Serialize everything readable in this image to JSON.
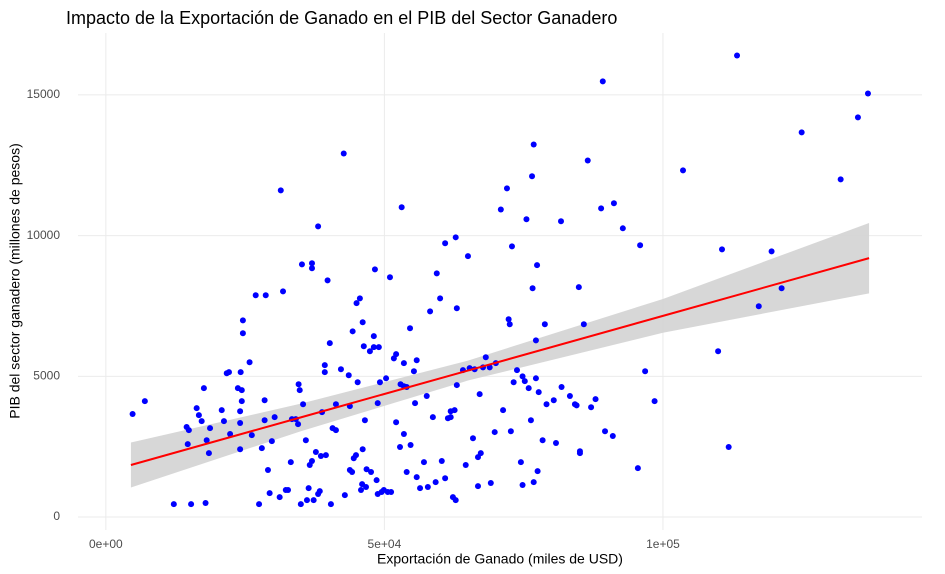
{
  "chart_data": {
    "type": "scatter",
    "title": "Impacto de la Exportación de Ganado en el PIB del Sector Ganadero",
    "x_label": "Exportación de Ganado (miles de USD)",
    "y_label": "PIB del sector ganadero (millones de pesos)",
    "xlim": [
      -5000,
      146500
    ],
    "ylim": [
      -460,
      17200
    ],
    "xticks": [
      {
        "value": 0,
        "label": "0e+00"
      },
      {
        "value": 50000,
        "label": "5e+04"
      },
      {
        "value": 100000,
        "label": "1e+05"
      }
    ],
    "yticks": [
      0,
      5000,
      10000,
      15000
    ],
    "grid": true,
    "color": "#0000ff",
    "x": [
      4800,
      7000,
      12200,
      15300,
      17900,
      14500,
      14900,
      14700,
      16300,
      16700,
      17200,
      17600,
      18100,
      18500,
      18700,
      20800,
      21200,
      21700,
      22100,
      22300,
      24100,
      23700,
      24200,
      24100,
      24100,
      24600,
      24600,
      24400,
      24400,
      25800,
      26200,
      26900,
      27500,
      28000,
      28500,
      28500,
      28700,
      29100,
      29400,
      29800,
      30300,
      31200,
      31400,
      31800,
      32300,
      32700,
      33200,
      33400,
      34100,
      34500,
      34600,
      34800,
      35000,
      35200,
      35400,
      35900,
      36100,
      36400,
      36600,
      37000,
      37000,
      37000,
      37300,
      37700,
      38100,
      38100,
      38400,
      38600,
      38800,
      39300,
      39300,
      39500,
      39800,
      40200,
      40400,
      40700,
      41300,
      41300,
      42200,
      42700,
      42900,
      43600,
      43800,
      43800,
      44200,
      44300,
      44500,
      44900,
      45000,
      45200,
      45600,
      45800,
      46000,
      46100,
      46100,
      46300,
      46500,
      46700,
      46800,
      47400,
      47600,
      48100,
      48100,
      48300,
      48600,
      48800,
      48800,
      49000,
      49200,
      49500,
      49900,
      50300,
      50600,
      51000,
      51200,
      51700,
      52100,
      52100,
      52800,
      52900,
      53100,
      53500,
      53500,
      53500,
      54000,
      54000,
      54600,
      54700,
      55300,
      55500,
      55800,
      55800,
      56400,
      57100,
      57600,
      57800,
      58200,
      58700,
      59200,
      59400,
      60000,
      60300,
      60900,
      60900,
      61400,
      61900,
      61900,
      62300,
      62600,
      62800,
      63000,
      63000,
      62800,
      64100,
      64600,
      65000,
      65300,
      65900,
      66200,
      66800,
      66800,
      67100,
      67300,
      67700,
      68200,
      68900,
      69100,
      69800,
      70000,
      70900,
      71300,
      72000,
      72300,
      72500,
      72700,
      72900,
      73200,
      73800,
      74500,
      74800,
      74800,
      75200,
      75500,
      75900,
      76300,
      76500,
      76600,
      76800,
      76800,
      77200,
      77400,
      77200,
      77500,
      77700,
      78400,
      78800,
      79100,
      80400,
      80800,
      81700,
      81800,
      83300,
      84200,
      84500,
      84900,
      85100,
      85100,
      85800,
      86500,
      87100,
      87900,
      88900,
      89200,
      89600,
      91000,
      91200,
      92800,
      95900,
      95500,
      96800,
      98500,
      103600,
      109900,
      110600,
      111800,
      113300,
      117200,
      119500,
      121300,
      124900,
      131900,
      135000,
      136800
    ],
    "values": [
      3660,
      4120,
      460,
      460,
      500,
      3200,
      3090,
      2590,
      3870,
      3620,
      3410,
      4580,
      2730,
      2270,
      3160,
      3800,
      3410,
      5110,
      5150,
      2950,
      2410,
      4580,
      5150,
      3760,
      3340,
      6990,
      6530,
      4510,
      4120,
      5500,
      2910,
      7880,
      460,
      2450,
      4150,
      3440,
      7880,
      1670,
      850,
      2700,
      3550,
      710,
      11610,
      8020,
      960,
      960,
      1950,
      3480,
      3480,
      3300,
      4720,
      4510,
      460,
      8980,
      4010,
      2730,
      600,
      1030,
      1850,
      9020,
      8840,
      1990,
      600,
      2310,
      10330,
      820,
      920,
      2170,
      3730,
      5400,
      5150,
      2200,
      8410,
      6180,
      460,
      3160,
      4010,
      3090,
      5250,
      12920,
      780,
      5040,
      3940,
      1670,
      1600,
      6600,
      2090,
      2200,
      7600,
      4790,
      7770,
      960,
      1170,
      6920,
      2410,
      6070,
      3440,
      1070,
      1700,
      5890,
      1600,
      6430,
      6040,
      8800,
      1310,
      4050,
      820,
      6040,
      4790,
      890,
      960,
      4930,
      890,
      8520,
      890,
      5640,
      5790,
      3370,
      2490,
      4720,
      11010,
      5470,
      4650,
      2950,
      4620,
      1600,
      6710,
      2560,
      5180,
      4050,
      5570,
      1420,
      1030,
      1950,
      4300,
      1070,
      7310,
      3550,
      1240,
      8660,
      7770,
      1990,
      9730,
      1380,
      3510,
      3550,
      3760,
      710,
      3800,
      9940,
      4690,
      7420,
      600,
      5220,
      1850,
      9270,
      5290,
      2800,
      5250,
      2130,
      1100,
      4370,
      2270,
      5320,
      5680,
      5320,
      1210,
      3020,
      5470,
      10930,
      3800,
      11680,
      7030,
      6850,
      3050,
      9620,
      4790,
      5220,
      1950,
      1140,
      5000,
      4830,
      10580,
      4580,
      3440,
      12110,
      8130,
      13240,
      1240,
      6280,
      8950,
      4930,
      1630,
      4440,
      2730,
      6850,
      4010,
      4150,
      2630,
      10510,
      4620,
      4300,
      4010,
      3970,
      8170,
      2270,
      2340,
      6850,
      12670,
      3900,
      4190,
      10970,
      15480,
      3050,
      2880,
      11150,
      10260,
      9660,
      1740,
      5180,
      4120,
      12320,
      5890,
      9510,
      2490,
      16400,
      7490,
      9440,
      8130,
      13670,
      12000,
      14200,
      15050
    ],
    "fit": {
      "x": [
        4500,
        35000,
        65000,
        100000,
        137000
      ],
      "values": [
        1850,
        3542,
        5206,
        7148,
        9200
      ],
      "lower": [
        1050,
        3050,
        4850,
        6550,
        7950
      ],
      "upper": [
        2650,
        4030,
        5560,
        7750,
        10450
      ],
      "color": "#ff0000",
      "band_color": "#d3d3d3"
    }
  }
}
